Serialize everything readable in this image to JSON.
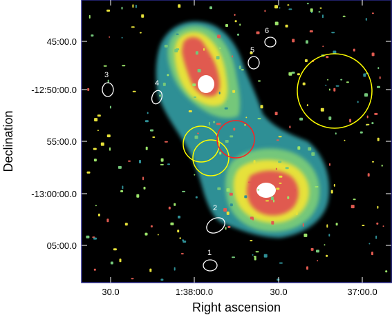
{
  "chart_data": {
    "type": "image",
    "xlabel": "Right ascension",
    "ylabel": "Declination",
    "x_ticks": [
      "30.0",
      "1:38:00.0",
      "30.0",
      "37:00.0"
    ],
    "y_ticks": [
      "45:00.0",
      "-12:50:00.0",
      "55:00.0",
      "-13:00:00.0",
      "05:00.0"
    ],
    "source_labels": [
      "1",
      "2",
      "3",
      "4",
      "5",
      "6"
    ],
    "colors": {
      "background": "#000000",
      "frame": "#2a2a8a",
      "ellipse_white": "#ffffff",
      "circle_yellow": "#ffff00",
      "circle_red": "#ff2020",
      "emission_low": "#2f8f95",
      "emission_mid": "#74c77a",
      "emission_high": "#e6e13a",
      "emission_peak": "#e05a50",
      "emission_core": "#ffffff"
    }
  }
}
